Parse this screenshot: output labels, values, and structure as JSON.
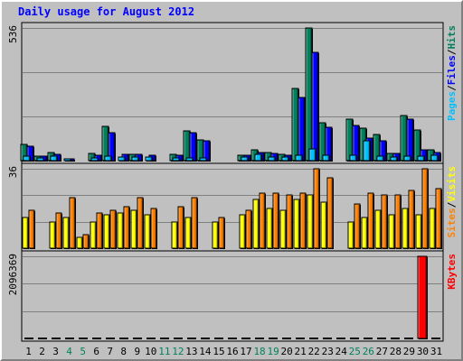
{
  "title": "Daily usage for August 2012",
  "colors": {
    "hits": "#00805C",
    "files": "#0000FF",
    "pages": "#00C0FF",
    "visits": "#FFFF00",
    "sites": "#FF8000",
    "kbytes": "#FF0000",
    "grid": "#808080",
    "panel_bg": "#C0C0C0",
    "weekend_label": "#00805C",
    "weekday_label": "#000000"
  },
  "chart_data": [
    {
      "type": "bar",
      "panel": "hits-files-pages",
      "categories": [
        "1",
        "2",
        "3",
        "4",
        "5",
        "6",
        "7",
        "8",
        "9",
        "10",
        "11",
        "12",
        "13",
        "14",
        "15",
        "16",
        "17",
        "18",
        "19",
        "20",
        "21",
        "22",
        "23",
        "24",
        "25",
        "26",
        "27",
        "28",
        "29",
        "30",
        "31"
      ],
      "weekend": [
        "4",
        "5",
        "11",
        "12",
        "18",
        "19",
        "25",
        "26"
      ],
      "ymax_label": "536",
      "ylim": [
        0,
        536
      ],
      "legend": [
        {
          "text": "Pages",
          "color": "#00C0FF"
        },
        {
          "text": "/",
          "color": "#000000"
        },
        {
          "text": "Files",
          "color": "#0000FF"
        },
        {
          "text": "/",
          "color": "#000000"
        },
        {
          "text": "Hits",
          "color": "#00805C"
        }
      ],
      "series": [
        {
          "name": "Hits",
          "values": [
            64,
            18,
            32,
            0,
            0,
            29,
            139,
            0,
            26,
            0,
            0,
            26,
            122,
            84,
            0,
            0,
            23,
            42,
            33,
            26,
            290,
            536,
            152,
            0,
            166,
            130,
            105,
            30,
            182,
            123,
            44
          ]
        },
        {
          "name": "Files",
          "values": [
            57,
            17,
            25,
            7,
            0,
            21,
            114,
            24,
            25,
            22,
            0,
            21,
            114,
            80,
            0,
            0,
            21,
            33,
            29,
            23,
            254,
            437,
            136,
            0,
            144,
            91,
            80,
            29,
            166,
            44,
            33
          ]
        },
        {
          "name": "Pages",
          "values": [
            18,
            10,
            18,
            5,
            0,
            11,
            18,
            14,
            14,
            14,
            0,
            11,
            11,
            11,
            0,
            0,
            14,
            25,
            14,
            14,
            22,
            47,
            22,
            0,
            22,
            80,
            18,
            14,
            18,
            18,
            22
          ]
        }
      ]
    },
    {
      "type": "bar",
      "panel": "sites-visits",
      "categories": [
        "1",
        "2",
        "3",
        "4",
        "5",
        "6",
        "7",
        "8",
        "9",
        "10",
        "11",
        "12",
        "13",
        "14",
        "15",
        "16",
        "17",
        "18",
        "19",
        "20",
        "21",
        "22",
        "23",
        "24",
        "25",
        "26",
        "27",
        "28",
        "29",
        "30",
        "31"
      ],
      "ymax_label": "36",
      "ylim": [
        0,
        36
      ],
      "legend": [
        {
          "text": "Sites",
          "color": "#FF8000"
        },
        {
          "text": "/",
          "color": "#000000"
        },
        {
          "text": "Visits",
          "color": "#FFFF00"
        }
      ],
      "series": [
        {
          "name": "Visits",
          "values": [
            14,
            0,
            12,
            14,
            5,
            12,
            15,
            16,
            17,
            15,
            0,
            12,
            14,
            0,
            12,
            0,
            15,
            22,
            18,
            17,
            22,
            24,
            21,
            0,
            12,
            14,
            17,
            15,
            18,
            15,
            18
          ]
        },
        {
          "name": "Sites",
          "values": [
            17,
            0,
            16,
            23,
            6,
            16,
            17,
            19,
            23,
            18,
            0,
            19,
            23,
            0,
            14,
            0,
            17,
            25,
            25,
            24,
            25,
            36,
            32,
            0,
            20,
            25,
            24,
            24,
            26,
            36,
            27
          ]
        }
      ]
    },
    {
      "type": "bar",
      "panel": "kbytes",
      "categories": [
        "1",
        "2",
        "3",
        "4",
        "5",
        "6",
        "7",
        "8",
        "9",
        "10",
        "11",
        "12",
        "13",
        "14",
        "15",
        "16",
        "17",
        "18",
        "19",
        "20",
        "21",
        "22",
        "23",
        "24",
        "25",
        "26",
        "27",
        "28",
        "29",
        "30",
        "31"
      ],
      "ymax_label": "2096369",
      "ylim": [
        0,
        2096369
      ],
      "legend": [
        {
          "text": "KBytes",
          "color": "#FF0000"
        }
      ],
      "series": [
        {
          "name": "KBytes",
          "values": [
            500,
            0,
            500,
            500,
            0,
            500,
            500,
            500,
            500,
            500,
            0,
            500,
            500,
            0,
            500,
            0,
            500,
            500,
            500,
            500,
            500,
            500,
            500,
            0,
            500,
            500,
            500,
            500,
            500,
            2096369,
            500
          ]
        }
      ]
    }
  ]
}
